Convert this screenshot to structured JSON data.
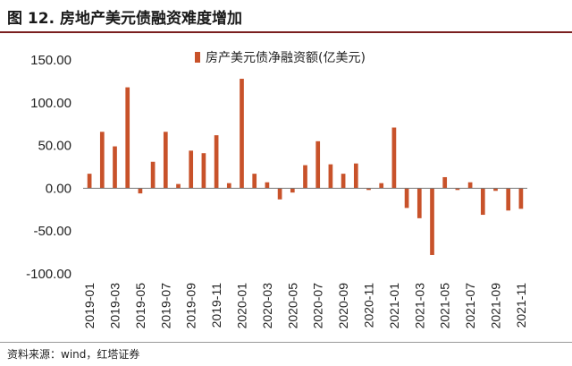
{
  "figure": {
    "title": "图 12. 房地产美元债融资难度增加",
    "source": "资料来源：wind，红塔证券"
  },
  "colors": {
    "bar": "#c8522a",
    "title_rule": "#7a1f1f"
  },
  "chart_data": {
    "type": "bar",
    "legend_position": "top",
    "ylim": [
      -100,
      150
    ],
    "yticks": [
      150,
      100,
      50,
      0,
      -50,
      -100
    ],
    "ytick_labels": [
      "150.00",
      "100.00",
      "50.00",
      "0.00",
      "-50.00",
      "-100.00"
    ],
    "grid": false,
    "categories": [
      "2019-01",
      "2019-02",
      "2019-03",
      "2019-04",
      "2019-05",
      "2019-06",
      "2019-07",
      "2019-08",
      "2019-09",
      "2019-10",
      "2019-11",
      "2019-12",
      "2020-01",
      "2020-02",
      "2020-03",
      "2020-04",
      "2020-05",
      "2020-06",
      "2020-07",
      "2020-08",
      "2020-09",
      "2020-10",
      "2020-11",
      "2020-12",
      "2021-01",
      "2021-02",
      "2021-03",
      "2021-04",
      "2021-05",
      "2021-06",
      "2021-07",
      "2021-08",
      "2021-09",
      "2021-10",
      "2021-11"
    ],
    "xtick_labels": [
      "2019-01",
      "2019-03",
      "2019-05",
      "2019-07",
      "2019-09",
      "2019-11",
      "2020-01",
      "2020-03",
      "2020-05",
      "2020-07",
      "2020-09",
      "2020-11",
      "2021-01",
      "2021-03",
      "2021-05",
      "2021-07",
      "2021-09",
      "2021-11"
    ],
    "series": [
      {
        "name": "房产美元债净融资额(亿美元)",
        "values": [
          17,
          66,
          49,
          118,
          -6,
          31,
          66,
          5,
          44,
          41,
          62,
          6,
          128,
          17,
          7,
          -13,
          -5,
          27,
          55,
          28,
          17,
          29,
          -2,
          6,
          71,
          -23,
          -35,
          -78,
          13,
          -2,
          7,
          -31,
          -3,
          -26,
          -24
        ]
      }
    ]
  }
}
